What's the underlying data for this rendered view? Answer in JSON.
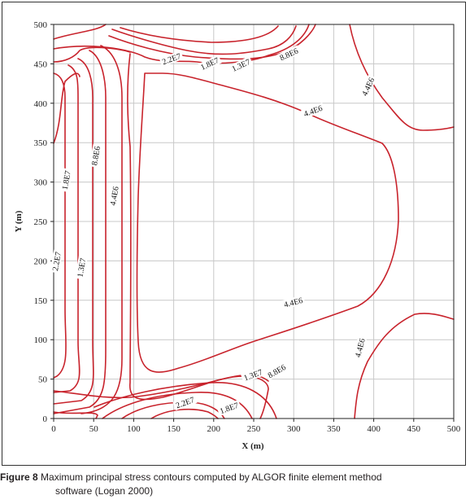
{
  "caption": {
    "label": "Figure 8",
    "text_line1": "Maximum principal stress contours computed by ALGOR finite element method",
    "text_line2": "software (Logan 2000)"
  },
  "colors": {
    "contour": "#c8232c",
    "grid": "#c8c8c8",
    "axis": "#222222"
  },
  "chart_data": {
    "type": "contour",
    "xlabel": "X (m)",
    "ylabel": "Y (m)",
    "xlim": [
      0,
      500
    ],
    "ylim": [
      0,
      500
    ],
    "xticks": [
      0,
      50,
      100,
      150,
      200,
      250,
      300,
      350,
      400,
      450,
      500
    ],
    "yticks": [
      0,
      50,
      100,
      150,
      200,
      250,
      300,
      350,
      400,
      450,
      500
    ],
    "grid": true,
    "contour_labels": [
      {
        "text": "2.2E7",
        "x": 148,
        "y": 454,
        "angle": -20
      },
      {
        "text": "1.8E7",
        "x": 196,
        "y": 448,
        "angle": -25
      },
      {
        "text": "1.3E7",
        "x": 235,
        "y": 446,
        "angle": -25
      },
      {
        "text": "8.8E6",
        "x": 295,
        "y": 460,
        "angle": -25
      },
      {
        "text": "4.4E6",
        "x": 395,
        "y": 420,
        "angle": -65
      },
      {
        "text": "4.4E6",
        "x": 325,
        "y": 388,
        "angle": -20
      },
      {
        "text": "1.8E7",
        "x": 18,
        "y": 302,
        "angle": -80
      },
      {
        "text": "8.8E6",
        "x": 55,
        "y": 333,
        "angle": -80
      },
      {
        "text": "4.4E6",
        "x": 78,
        "y": 282,
        "angle": -80
      },
      {
        "text": "2.2E7",
        "x": 6,
        "y": 199,
        "angle": -80
      },
      {
        "text": "1.3E7",
        "x": 37,
        "y": 191,
        "angle": -80
      },
      {
        "text": "4.4E6",
        "x": 300,
        "y": 145,
        "angle": -15
      },
      {
        "text": "4.4E6",
        "x": 385,
        "y": 89,
        "angle": -75
      },
      {
        "text": "1.3E7",
        "x": 250,
        "y": 53,
        "angle": -20
      },
      {
        "text": "8.8E6",
        "x": 280,
        "y": 58,
        "angle": -30
      },
      {
        "text": "2.2E7",
        "x": 165,
        "y": 18,
        "angle": -20
      },
      {
        "text": "1.8E7",
        "x": 220,
        "y": 11,
        "angle": -20
      }
    ]
  }
}
